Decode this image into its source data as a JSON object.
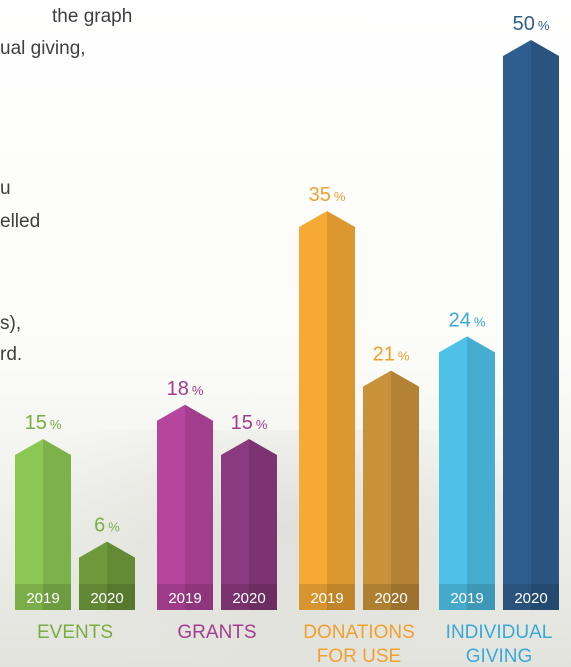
{
  "intro_text": [
    "the graph",
    "ual giving,",
    "u",
    "elled",
    "s),",
    "rd."
  ],
  "chart_data": {
    "type": "bar",
    "title": "",
    "xlabel": "",
    "ylabel": "",
    "unit": "%",
    "groups": [
      {
        "category": "EVENTS",
        "label_lines": [
          "EVENTS"
        ],
        "color_light": "#8cc653",
        "color_dark": "#6f9a3c",
        "value_color": "#7aae42",
        "label_color": "#7aae42",
        "bars": [
          {
            "year": "2019",
            "value": 15
          },
          {
            "year": "2020",
            "value": 6
          }
        ]
      },
      {
        "category": "GRANTS",
        "label_lines": [
          "GRANTS"
        ],
        "color_light": "#b6459e",
        "color_dark": "#8a3a7e",
        "value_color": "#a13d8f",
        "label_color": "#a13d8f",
        "bars": [
          {
            "year": "2019",
            "value": 18
          },
          {
            "year": "2020",
            "value": 15
          }
        ]
      },
      {
        "category": "DONATIONS FOR USE",
        "label_lines": [
          "DONATIONS",
          "FOR USE"
        ],
        "color_light": "#f6a935",
        "color_dark": "#c8913a",
        "value_color": "#f0a02e",
        "label_color": "#f0a02e",
        "bars": [
          {
            "year": "2019",
            "value": 35
          },
          {
            "year": "2020",
            "value": 21
          }
        ]
      },
      {
        "category": "INDIVIDUAL GIVING",
        "label_lines": [
          "INDIVIDUAL",
          "GIVING"
        ],
        "color_light": "#4fc1e9",
        "color_dark": "#2f5e8e",
        "value_color": "#3aa9d8",
        "value_color_alt": "#2f5e8e",
        "label_color": "#3aa9d8",
        "bars": [
          {
            "year": "2019",
            "value": 24
          },
          {
            "year": "2020",
            "value": 50
          }
        ]
      }
    ],
    "ylim": [
      0,
      50
    ],
    "grid": false,
    "legend": "none"
  }
}
